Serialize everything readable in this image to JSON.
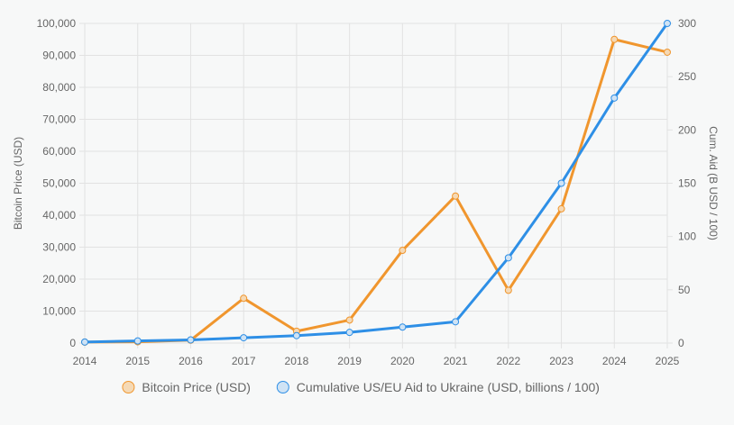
{
  "chart_data": {
    "type": "line",
    "x": [
      "2014",
      "2015",
      "2016",
      "2017",
      "2018",
      "2019",
      "2020",
      "2021",
      "2022",
      "2023",
      "2024",
      "2025"
    ],
    "y_left": {
      "label": "Bitcoin Price (USD)",
      "lim": [
        0,
        100000
      ],
      "ticks": [
        0,
        10000,
        20000,
        30000,
        40000,
        50000,
        60000,
        70000,
        80000,
        90000,
        100000
      ],
      "tick_labels": [
        "0",
        "10,000",
        "20,000",
        "30,000",
        "40,000",
        "50,000",
        "60,000",
        "70,000",
        "80,000",
        "90,000",
        "100,000"
      ]
    },
    "y_right": {
      "label": "Cum. Aid (B USD / 100)",
      "lim": [
        0,
        300
      ],
      "ticks": [
        0,
        50,
        100,
        150,
        200,
        250,
        300
      ],
      "tick_labels": [
        "0",
        "50",
        "100",
        "150",
        "200",
        "250",
        "300"
      ]
    },
    "series": [
      {
        "name": "Bitcoin Price (USD)",
        "axis": "left",
        "color": "#f0962e",
        "fill": "#f5d9b5",
        "values": [
          300,
          400,
          900,
          14000,
          3700,
          7200,
          29000,
          46000,
          16500,
          42000,
          95000,
          91000
        ]
      },
      {
        "name": "Cumulative US/EU Aid to Ukraine (USD, billions / 100)",
        "axis": "right",
        "color": "#2e8fe6",
        "fill": "#cfe3f5",
        "values": [
          1,
          2,
          3,
          5,
          7,
          10,
          15,
          20,
          80,
          150,
          230,
          300
        ]
      }
    ],
    "grid": true,
    "legend_position": "bottom"
  }
}
